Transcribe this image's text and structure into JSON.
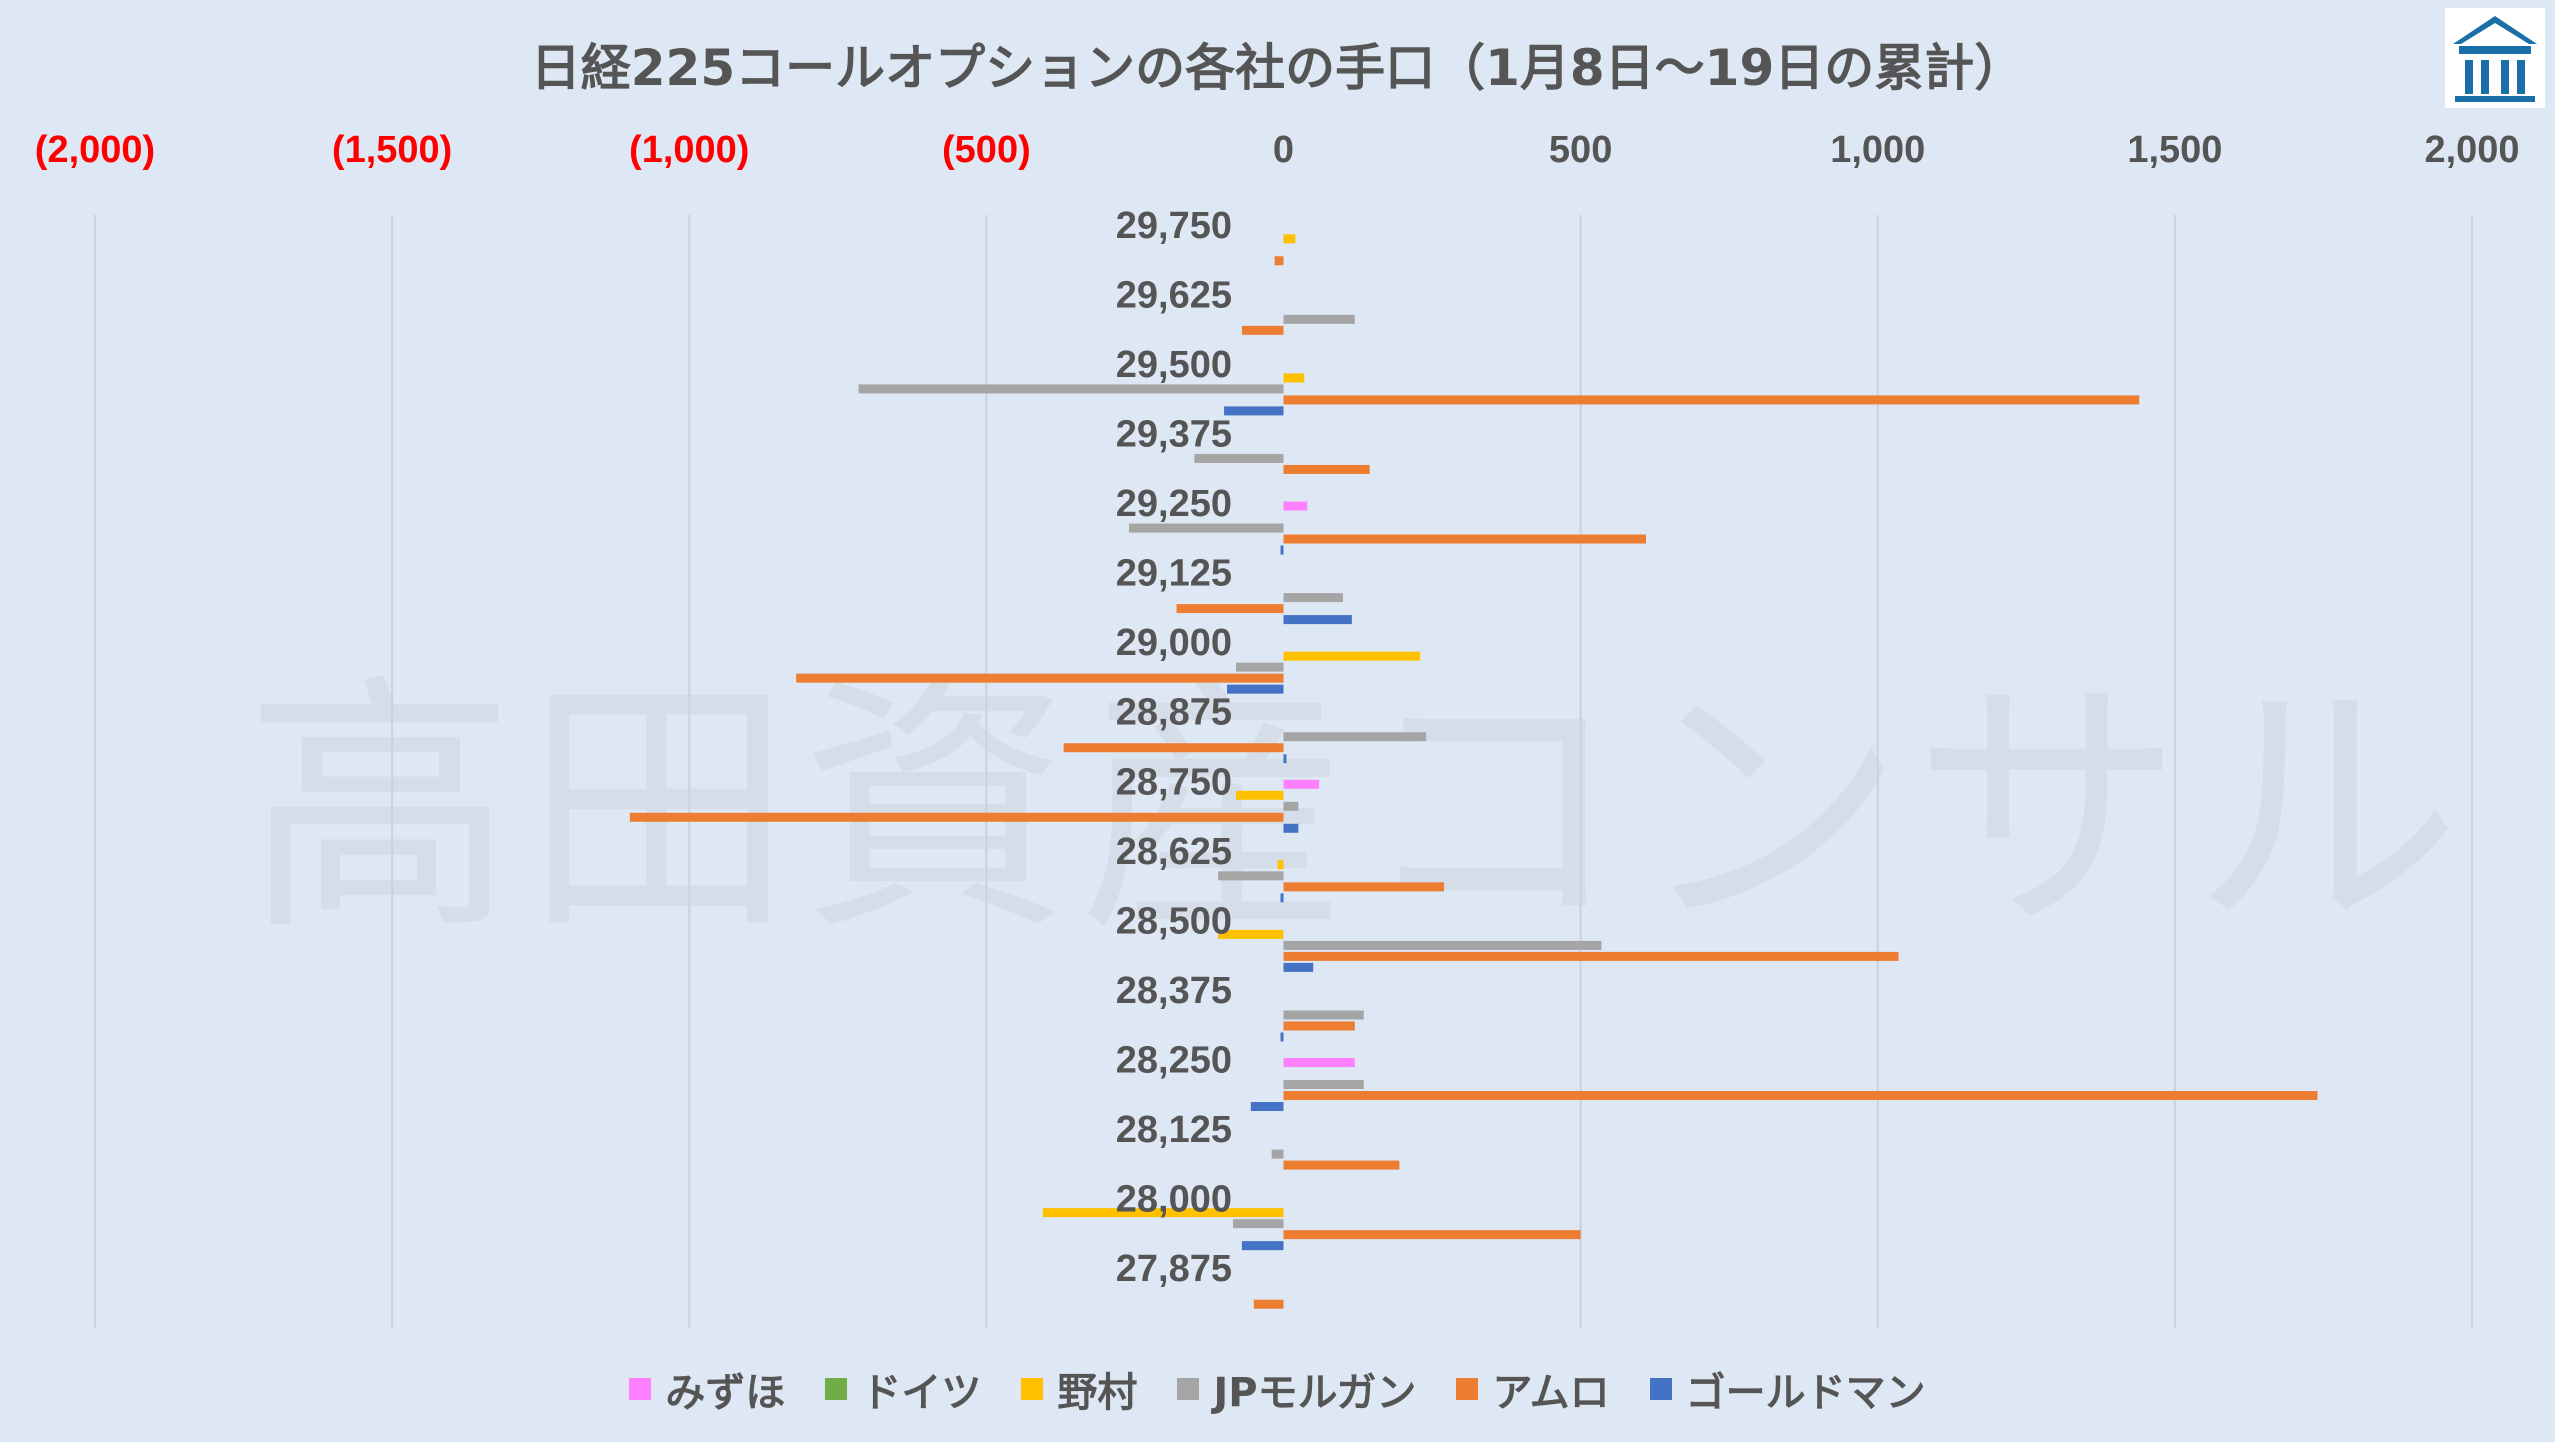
{
  "title": "日経225コールオプションの各社の手口（1月8日～19日の累計）",
  "watermark": "高田資産コンサル",
  "colors": {
    "negative_tick": "#ff0000",
    "tick": "#555555",
    "grid": "#c9d2dc",
    "background": "#dde8f4"
  },
  "chart_data": {
    "type": "bar",
    "orientation": "horizontal",
    "xlim": [
      -2000,
      2000
    ],
    "x_ticks": [
      -2000,
      -1500,
      -1000,
      -500,
      0,
      500,
      1000,
      1500,
      2000
    ],
    "x_tick_labels": [
      "(2,000)",
      "(1,500)",
      "(1,000)",
      "(500)",
      "0",
      "500",
      "1,000",
      "1,500",
      "2,000"
    ],
    "grid": true,
    "legend": "bottom",
    "categories": [
      "29,750",
      "29,625",
      "29,500",
      "29,375",
      "29,250",
      "29,125",
      "29,000",
      "28,875",
      "28,750",
      "28,625",
      "28,500",
      "28,375",
      "28,250",
      "28,125",
      "28,000",
      "27,875"
    ],
    "series": [
      {
        "name": "みずほ",
        "color": "#ff80ff",
        "values": [
          0,
          0,
          0,
          0,
          40,
          0,
          0,
          0,
          60,
          0,
          0,
          0,
          120,
          0,
          0,
          0
        ]
      },
      {
        "name": "ドイツ",
        "color": "#70ad47",
        "values": [
          0,
          0,
          0,
          0,
          0,
          0,
          0,
          0,
          0,
          0,
          0,
          0,
          0,
          0,
          0,
          0
        ]
      },
      {
        "name": "野村",
        "color": "#ffc000",
        "values": [
          20,
          0,
          35,
          0,
          0,
          0,
          230,
          0,
          -80,
          -10,
          -110,
          0,
          0,
          0,
          -405,
          0
        ]
      },
      {
        "name": "JPモルガン",
        "color": "#a5a5a5",
        "values": [
          0,
          120,
          -715,
          -150,
          -260,
          100,
          -80,
          240,
          25,
          -110,
          535,
          135,
          135,
          -20,
          -85,
          0
        ]
      },
      {
        "name": "アムロ",
        "color": "#ed7d31",
        "values": [
          -15,
          -70,
          1440,
          145,
          610,
          -180,
          -820,
          -370,
          -1100,
          270,
          1035,
          120,
          1740,
          195,
          500,
          -50
        ]
      },
      {
        "name": "ゴールドマン",
        "color": "#4472c4",
        "values": [
          0,
          0,
          -100,
          0,
          -5,
          115,
          -95,
          5,
          25,
          -5,
          50,
          -5,
          -55,
          0,
          -70,
          0
        ]
      }
    ]
  }
}
